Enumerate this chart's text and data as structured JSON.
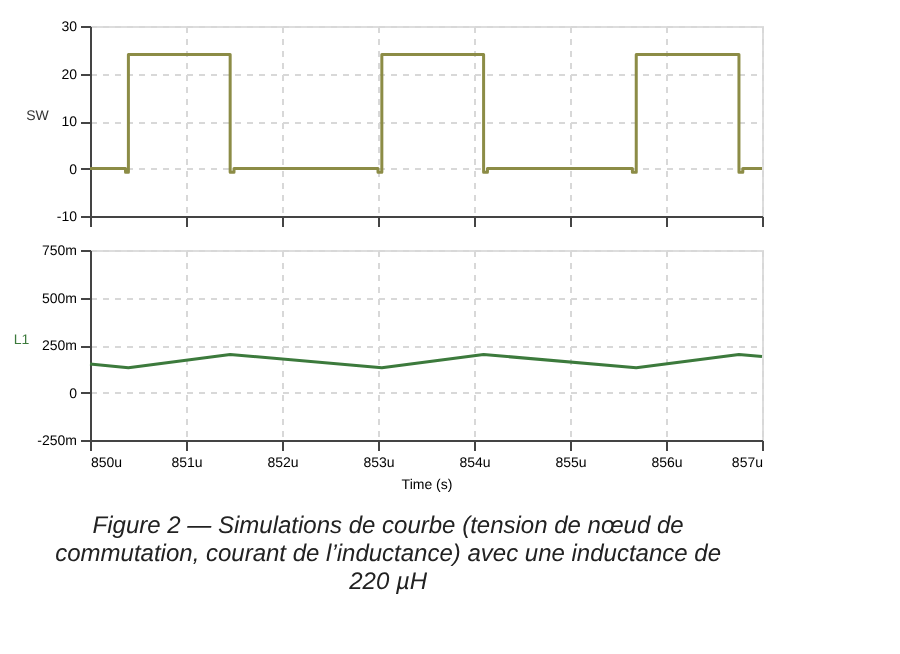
{
  "chart_data": [
    {
      "type": "line",
      "ylabel": "SW",
      "xlim": [
        850,
        857
      ],
      "xticks": [
        {
          "value": 850,
          "label": null
        },
        {
          "value": 851,
          "label": null
        },
        {
          "value": 852,
          "label": null
        },
        {
          "value": 853,
          "label": null
        },
        {
          "value": 854,
          "label": null
        },
        {
          "value": 855,
          "label": null
        },
        {
          "value": 856,
          "label": null
        },
        {
          "value": 857,
          "label": null
        }
      ],
      "ylim": [
        -10,
        30
      ],
      "yticks": [
        -10,
        0,
        10,
        20,
        30
      ],
      "grid": true,
      "tick_labels": "y",
      "series": [
        {
          "color": "#8c8c46",
          "x": [
            850,
            850.37,
            850.37,
            850.4,
            850.4,
            851.46,
            851.46,
            851.5,
            851.5,
            853.0,
            853.0,
            853.04,
            853.04,
            854.1,
            854.1,
            854.14,
            854.14,
            855.65,
            855.65,
            855.69,
            855.69,
            856.76,
            856.76,
            856.8,
            856.8,
            857
          ],
          "values": [
            0,
            0,
            -0.8,
            -0.8,
            24,
            24,
            -0.8,
            -0.8,
            0,
            0,
            -0.8,
            -0.8,
            24,
            24,
            -0.8,
            -0.8,
            0,
            0,
            -0.8,
            -0.8,
            24,
            24,
            -0.8,
            -0.8,
            0,
            0
          ]
        }
      ]
    },
    {
      "type": "line",
      "ylabel": "L1",
      "xlabel": "Time (s)",
      "xlim": [
        850,
        857
      ],
      "xticks": [
        {
          "value": 850,
          "label": "850u"
        },
        {
          "value": 851,
          "label": "851u"
        },
        {
          "value": 852,
          "label": "852u"
        },
        {
          "value": 853,
          "label": "853u"
        },
        {
          "value": 854,
          "label": "854u"
        },
        {
          "value": 855,
          "label": "855u"
        },
        {
          "value": 856,
          "label": "856u"
        },
        {
          "value": 857,
          "label": "857u"
        }
      ],
      "ylim": [
        -250,
        750
      ],
      "yticks": [
        {
          "value": -250,
          "label": "-250m"
        },
        0,
        {
          "value": 250,
          "label": "250m"
        },
        {
          "value": 500,
          "label": "500m"
        },
        {
          "value": 750,
          "label": "750m"
        }
      ],
      "grid": true,
      "series": [
        {
          "color": "#3c7a3c",
          "x": [
            850,
            850.4,
            851.46,
            853.04,
            854.1,
            855.69,
            856.76,
            857
          ],
          "values": [
            150,
            130,
            200,
            130,
            200,
            130,
            200,
            190
          ]
        }
      ],
      "annotations": [
        "Figure 2 — Simulations de courbe (tension de nœud de commutation, courant de l’inductance) avec une inductance de 220 µH"
      ]
    }
  ]
}
